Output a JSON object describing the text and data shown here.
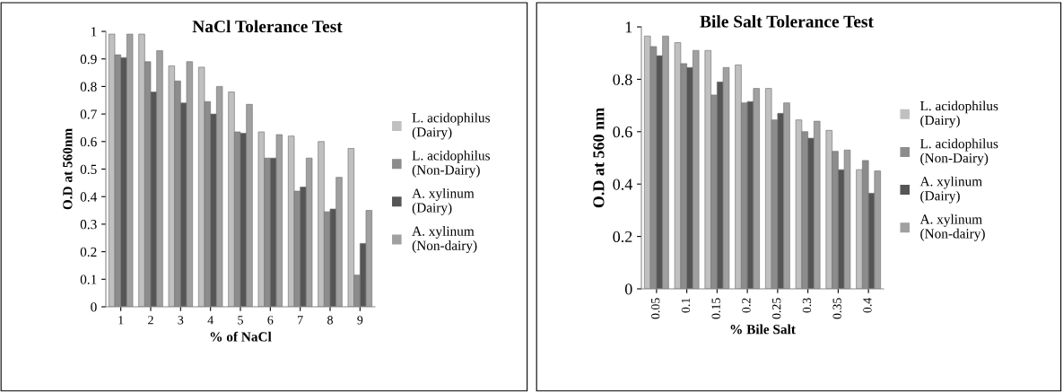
{
  "chart_data": [
    {
      "type": "bar",
      "title": "NaCl Tolerance Test",
      "xlabel": "% of NaCl",
      "ylabel": "O.D at 560nm",
      "categories": [
        "1",
        "2",
        "3",
        "4",
        "5",
        "6",
        "7",
        "8",
        "9"
      ],
      "series": [
        {
          "name": "L. acidophilus (Dairy)",
          "color": "#c0c0c0",
          "values": [
            0.99,
            0.99,
            0.875,
            0.87,
            0.78,
            0.635,
            0.62,
            0.6,
            0.575
          ]
        },
        {
          "name": "L. acidophilus (Non-Dairy)",
          "color": "#8c8c8c",
          "values": [
            0.915,
            0.89,
            0.82,
            0.745,
            0.635,
            0.54,
            0.42,
            0.345,
            0.115
          ]
        },
        {
          "name": "A. xylinum (Dairy)",
          "color": "#555555",
          "values": [
            0.905,
            0.78,
            0.74,
            0.7,
            0.63,
            0.54,
            0.435,
            0.355,
            0.23
          ]
        },
        {
          "name": "A. xylinum (Non-dairy)",
          "color": "#a0a0a0",
          "values": [
            0.99,
            0.93,
            0.89,
            0.8,
            0.735,
            0.625,
            0.54,
            0.47,
            0.35
          ]
        }
      ],
      "ylim": [
        0,
        1
      ],
      "yticks": [
        0,
        0.1,
        0.2,
        0.3,
        0.4,
        0.5,
        0.6,
        0.7,
        0.8,
        0.9,
        1
      ],
      "grid": false,
      "legend": "right"
    },
    {
      "type": "bar",
      "title": "Bile Salt Tolerance Test",
      "xlabel": "% Bile Salt",
      "ylabel": "O.D at 560 nm",
      "categories": [
        "0.05",
        "0.1",
        "0.15",
        "0.2",
        "0.25",
        "0.3",
        "0.35",
        "0.4"
      ],
      "series": [
        {
          "name": "L. acidophilus (Dairy)",
          "color": "#c0c0c0",
          "values": [
            0.965,
            0.94,
            0.91,
            0.855,
            0.765,
            0.645,
            0.605,
            0.455
          ]
        },
        {
          "name": "L. acidophilus (Non-Dairy)",
          "color": "#8c8c8c",
          "values": [
            0.925,
            0.86,
            0.74,
            0.71,
            0.645,
            0.6,
            0.525,
            0.49
          ]
        },
        {
          "name": "A. xylinum (Dairy)",
          "color": "#555555",
          "values": [
            0.89,
            0.845,
            0.79,
            0.715,
            0.67,
            0.575,
            0.455,
            0.365
          ]
        },
        {
          "name": "A. xylinum (Non-dairy)",
          "color": "#a0a0a0",
          "values": [
            0.965,
            0.91,
            0.845,
            0.765,
            0.71,
            0.64,
            0.53,
            0.45
          ]
        }
      ],
      "ylim": [
        0,
        1
      ],
      "yticks": [
        0,
        0.2,
        0.4,
        0.6,
        0.8,
        1
      ],
      "grid": false,
      "legend": "right"
    }
  ]
}
